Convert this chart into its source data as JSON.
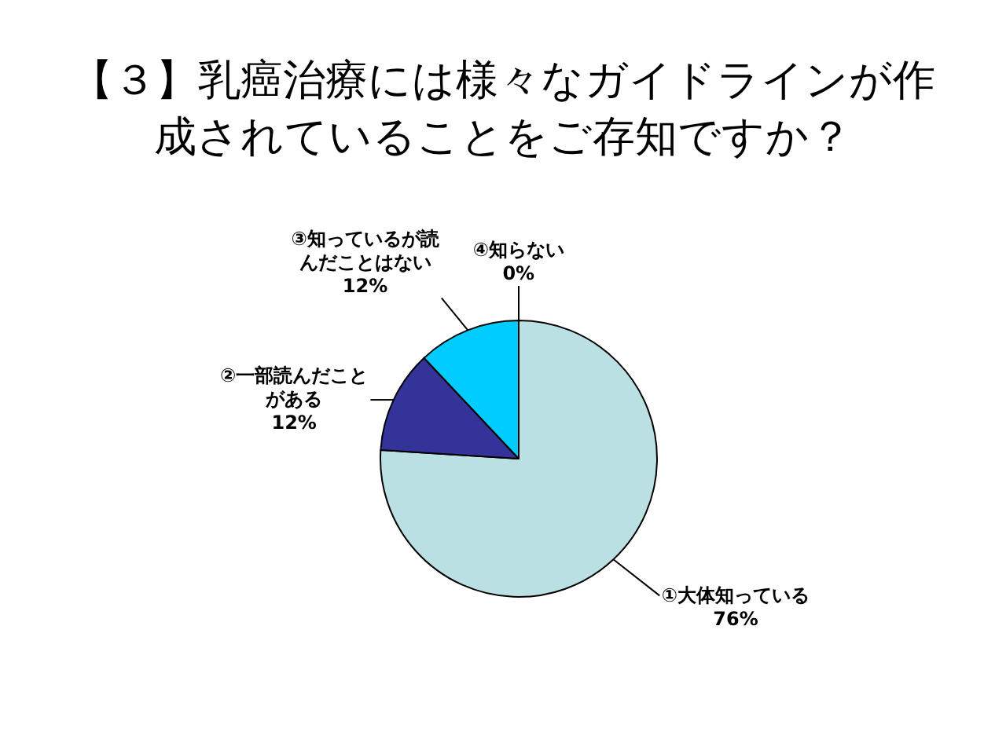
{
  "chart_data": {
    "type": "pie",
    "title": "【３】乳癌治療には様々なガイドラインが作成されていることをご存知ですか？",
    "categories": [
      "①大体知っている",
      "②一部読んだことがある",
      "③知っているが読んだことはない",
      "④知らない"
    ],
    "values": [
      76,
      12,
      12,
      0
    ],
    "value_labels": [
      "76%",
      "12%",
      "12%",
      "0%"
    ],
    "colors": [
      "#bbe0e3",
      "#333399",
      "#00ccff",
      null
    ]
  }
}
